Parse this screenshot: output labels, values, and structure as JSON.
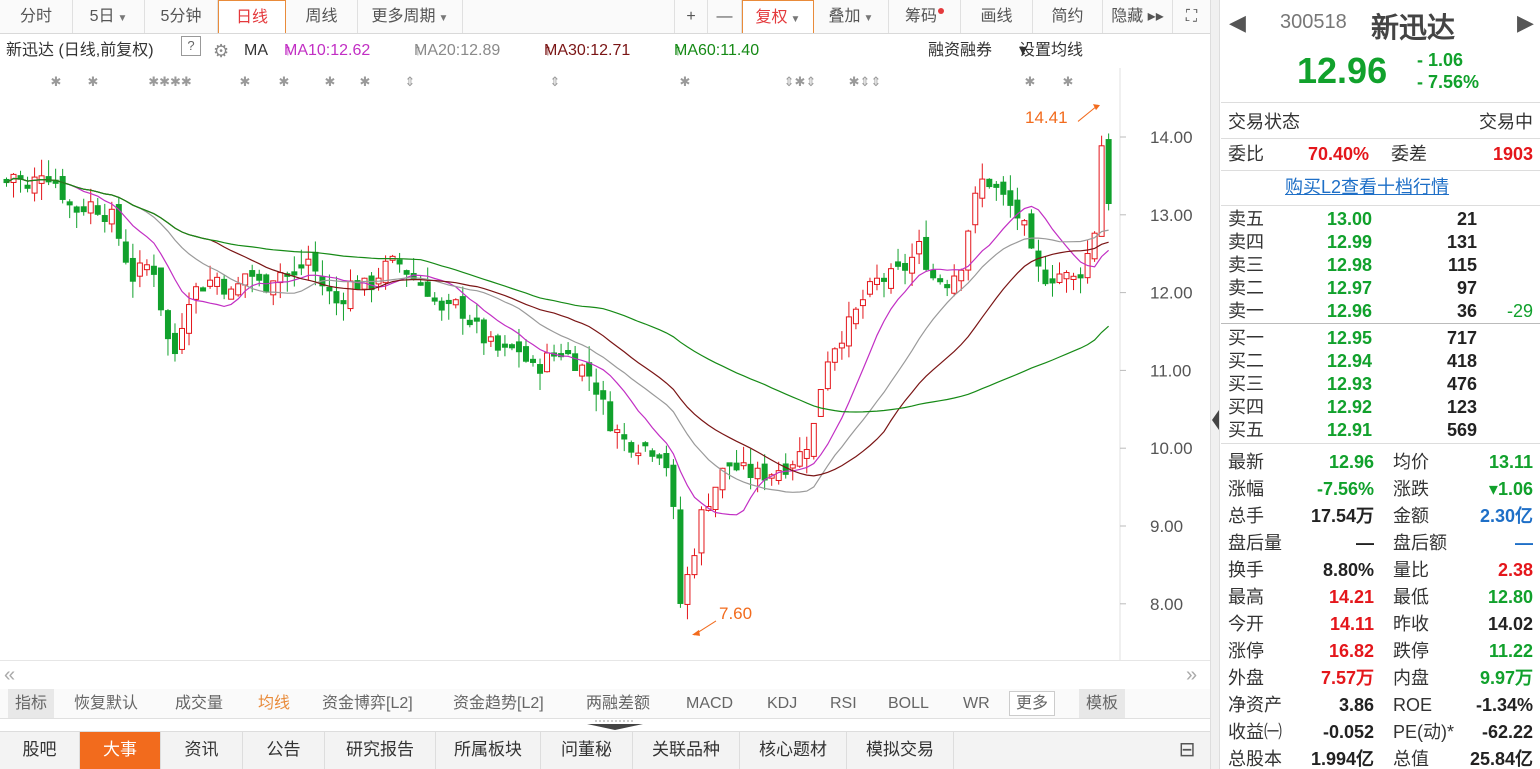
{
  "topbar": {
    "tabs": [
      {
        "label": "分时",
        "caret": false
      },
      {
        "label": "5日",
        "caret": true
      },
      {
        "label": "5分钟",
        "caret": false
      },
      {
        "label": "日线",
        "caret": false,
        "active": true
      },
      {
        "label": "周线",
        "caret": false
      },
      {
        "label": "更多周期",
        "caret": true
      }
    ],
    "tools": [
      {
        "label": "+"
      },
      {
        "label": "—"
      },
      {
        "label": "复权",
        "caret": true,
        "active": true
      },
      {
        "label": "叠加",
        "caret": true
      },
      {
        "label": "筹码",
        "dot": true
      },
      {
        "label": "画线"
      },
      {
        "label": "简约"
      },
      {
        "label": "隐藏 ▸▸"
      },
      {
        "label": "⛶"
      }
    ]
  },
  "infobar": {
    "stock_label": "新迅达 (日线,前复权)",
    "help": "?",
    "ma_label": "MA",
    "ma10": "MA10:12.62",
    "ma20": "MA20:12.89",
    "ma30": "MA30:12.71",
    "ma60": "MA60:11.40",
    "arrow": "↑",
    "margin": "融资融券",
    "set_ma": "设置均线",
    "caret": "▾"
  },
  "colors": {
    "up": "#e4161b",
    "down": "#11a12c",
    "ma10": "#c22fc4",
    "ma20": "#9a9a9a",
    "ma30": "#7a1515",
    "ma60": "#168a16",
    "accent": "#f26b1d"
  },
  "chart_data": {
    "type": "candlestick",
    "y_ticks": [
      "14.00",
      "13.00",
      "12.00",
      "11.00",
      "10.00",
      "9.00",
      "8.00"
    ],
    "ylim": [
      7.4,
      14.8
    ],
    "high_label": "14.41",
    "low_label": "7.60",
    "event_markers": [
      "✱",
      "✱",
      "✱✱✱✱",
      "✱",
      "✱",
      "✱",
      "✱",
      "⇕",
      "⇕",
      "✱",
      "⇕✱⇕",
      "✱⇕⇕",
      "✱",
      "✱"
    ]
  },
  "navrow": {
    "left_arrow": "«",
    "right_arrow": "»"
  },
  "indicator_tabs": [
    {
      "label": "指标",
      "style": "boxed"
    },
    {
      "label": "恢复默认"
    },
    {
      "label": "成交量"
    },
    {
      "label": "均线",
      "style": "active"
    },
    {
      "label": "资金博弈[L2]"
    },
    {
      "label": "资金趋势[L2]"
    },
    {
      "label": "两融差额"
    },
    {
      "label": "MACD"
    },
    {
      "label": "KDJ"
    },
    {
      "label": "RSI"
    },
    {
      "label": "BOLL"
    },
    {
      "label": "WR"
    },
    {
      "label": "更多",
      "style": "outlined"
    },
    {
      "label": "模板",
      "style": "boxed"
    }
  ],
  "bottom_tabs": [
    {
      "label": "股吧"
    },
    {
      "label": "大事",
      "active": true
    },
    {
      "label": "资讯"
    },
    {
      "label": "公告"
    },
    {
      "label": "研究报告"
    },
    {
      "label": "所属板块"
    },
    {
      "label": "问董秘"
    },
    {
      "label": "关联品种"
    },
    {
      "label": "核心题材"
    },
    {
      "label": "模拟交易"
    }
  ],
  "right": {
    "code": "300518",
    "name": "新迅达",
    "price": "12.96",
    "change": "- 1.06",
    "change_pct": "- 7.56%",
    "trade_status_label": "交易状态",
    "trade_status": "交易中",
    "weibi_label": "委比",
    "weibi": "70.40%",
    "weicha_label": "委差",
    "weicha": "1903",
    "l2_link": "购买L2查看十档行情",
    "asks": [
      {
        "label": "卖五",
        "price": "13.00",
        "vol": "21",
        "delta": ""
      },
      {
        "label": "卖四",
        "price": "12.99",
        "vol": "131",
        "delta": ""
      },
      {
        "label": "卖三",
        "price": "12.98",
        "vol": "115",
        "delta": ""
      },
      {
        "label": "卖二",
        "price": "12.97",
        "vol": "97",
        "delta": ""
      },
      {
        "label": "卖一",
        "price": "12.96",
        "vol": "36",
        "delta": "-29"
      }
    ],
    "bids": [
      {
        "label": "买一",
        "price": "12.95",
        "vol": "717"
      },
      {
        "label": "买二",
        "price": "12.94",
        "vol": "418"
      },
      {
        "label": "买三",
        "price": "12.93",
        "vol": "476"
      },
      {
        "label": "买四",
        "price": "12.92",
        "vol": "123"
      },
      {
        "label": "买五",
        "price": "12.91",
        "vol": "569"
      }
    ],
    "stats": [
      {
        "l1": "最新",
        "v1": "12.96",
        "c1": "green",
        "l2": "均价",
        "v2": "13.11",
        "c2": "green"
      },
      {
        "l1": "涨幅",
        "v1": "-7.56%",
        "c1": "green",
        "l2": "涨跌",
        "v2": "▾1.06",
        "c2": "green"
      },
      {
        "l1": "总手",
        "v1": "17.54万",
        "c1": "dark",
        "l2": "金额",
        "v2": "2.30亿",
        "c2": "blue"
      },
      {
        "l1": "盘后量",
        "v1": "—",
        "c1": "dark",
        "l2": "盘后额",
        "v2": "—",
        "c2": "blue"
      },
      {
        "l1": "换手",
        "v1": "8.80%",
        "c1": "dark",
        "l2": "量比",
        "v2": "2.38",
        "c2": "red"
      },
      {
        "l1": "最高",
        "v1": "14.21",
        "c1": "red",
        "l2": "最低",
        "v2": "12.80",
        "c2": "green"
      },
      {
        "l1": "今开",
        "v1": "14.11",
        "c1": "red",
        "l2": "昨收",
        "v2": "14.02",
        "c2": "dark"
      },
      {
        "l1": "涨停",
        "v1": "16.82",
        "c1": "red",
        "l2": "跌停",
        "v2": "11.22",
        "c2": "green"
      },
      {
        "l1": "外盘",
        "v1": "7.57万",
        "c1": "red",
        "l2": "内盘",
        "v2": "9.97万",
        "c2": "green"
      },
      {
        "l1": "净资产",
        "v1": "3.86",
        "c1": "dark",
        "l2": "ROE",
        "v2": "-1.34%",
        "c2": "dark"
      },
      {
        "l1": "收益㈠",
        "v1": "-0.052",
        "c1": "dark",
        "l2": "PE(动)*",
        "v2": "-62.22",
        "c2": "dark"
      },
      {
        "l1": "总股本",
        "v1": "1.994亿",
        "c1": "dark",
        "l2": "总值",
        "v2": "25.84亿",
        "c2": "dark"
      }
    ]
  }
}
